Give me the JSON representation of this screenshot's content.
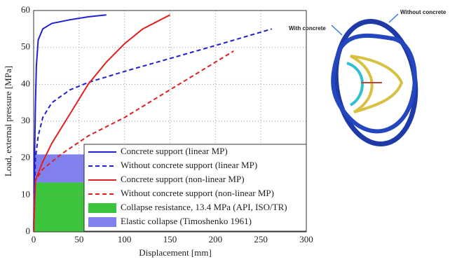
{
  "chart_data": {
    "type": "line",
    "x_label": "Displacement [mm]",
    "y_label": "Load, external pressure [MPa]",
    "xlim": [
      0,
      300
    ],
    "ylim": [
      0,
      60
    ],
    "xticks": [
      0,
      50,
      100,
      150,
      200,
      250,
      300
    ],
    "yticks": [
      0,
      10,
      20,
      30,
      40,
      50,
      60
    ],
    "grid": true,
    "legend": "lower right",
    "series": [
      {
        "name": "Concrete support (linear MP)",
        "color": "#1f1fd6",
        "dash": false,
        "x": [
          0,
          1,
          2,
          3,
          5,
          10,
          20,
          40,
          60,
          80
        ],
        "values": [
          0,
          20,
          35,
          45,
          52,
          55,
          56.5,
          57.5,
          58.3,
          58.8
        ]
      },
      {
        "name": "Without concrete support (linear MP)",
        "color": "#1f1fd6",
        "dash": true,
        "x": [
          0,
          2,
          5,
          10,
          20,
          40,
          60,
          100,
          150,
          200,
          262
        ],
        "values": [
          0,
          20,
          26,
          31,
          35,
          38.5,
          40.5,
          43.5,
          47,
          50.5,
          55
        ]
      },
      {
        "name": "Concrete support (non-linear MP)",
        "color": "#e02020",
        "dash": false,
        "x": [
          0,
          2,
          10,
          20,
          40,
          60,
          80,
          100,
          120,
          150
        ],
        "values": [
          0,
          14,
          19,
          24,
          32,
          40,
          46,
          51,
          55,
          58.8
        ]
      },
      {
        "name": "Without concrete support (non-linear MP)",
        "color": "#e02020",
        "dash": true,
        "x": [
          0,
          2,
          10,
          30,
          60,
          100,
          140,
          180,
          220
        ],
        "values": [
          0,
          14,
          17,
          21,
          26,
          31,
          37,
          43,
          49
        ]
      }
    ],
    "bands": [
      {
        "name": "Collapse resistance, 13.4 MPa (API, ISO/TR)",
        "color": "#3cc43c",
        "range": [
          0,
          13.4
        ]
      },
      {
        "name": "Elastic collapse (Timoshenko 1961)",
        "color": "#8080f0",
        "range": [
          13.4,
          21
        ]
      }
    ],
    "annotations": [
      "With concrete",
      "Without concrete"
    ]
  }
}
